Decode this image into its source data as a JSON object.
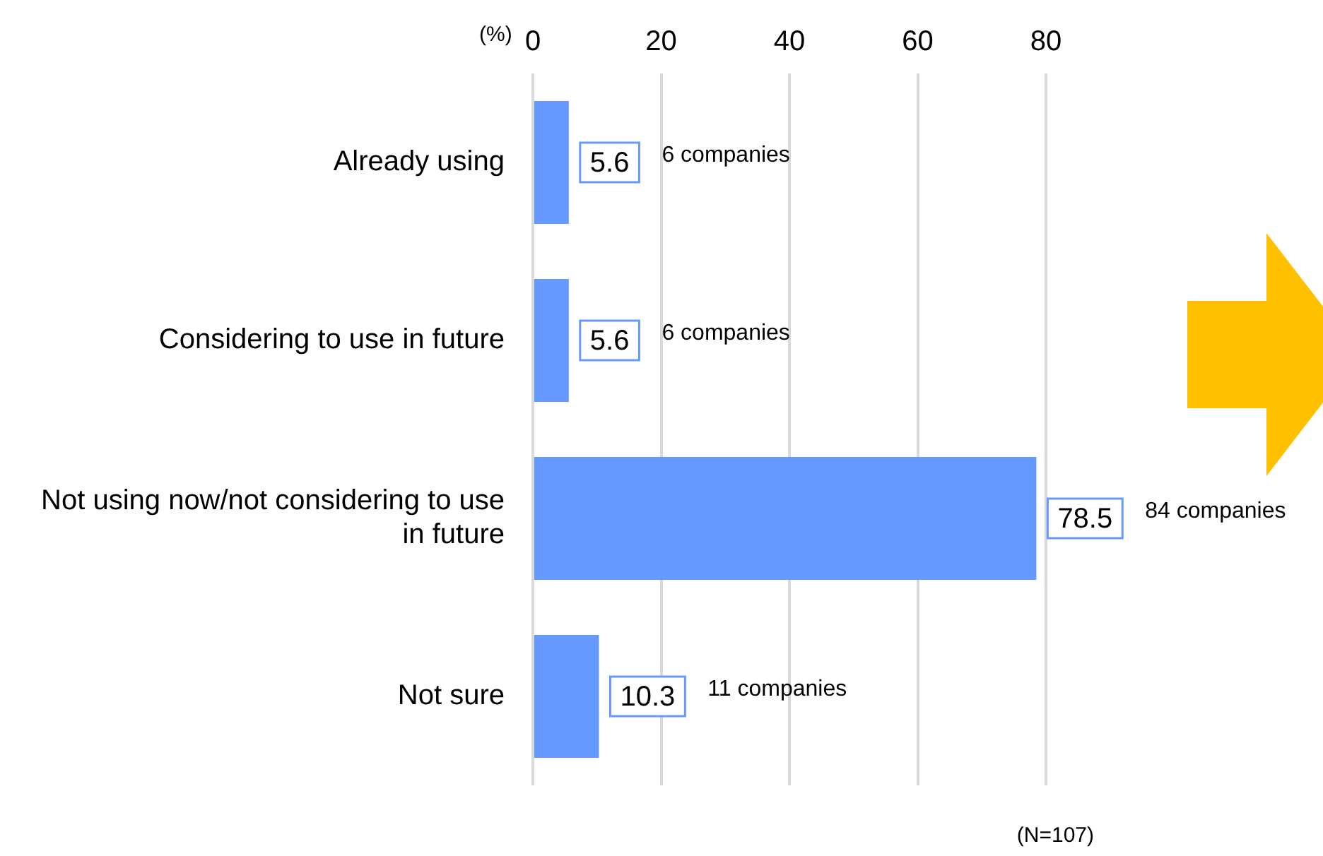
{
  "chart_data": {
    "type": "bar",
    "orientation": "horizontal",
    "xlabel": "(%)",
    "categories": [
      "Already using",
      "Considering to use in future",
      "Not using now/not considering to use in future",
      "Not sure"
    ],
    "values": [
      5.6,
      5.6,
      78.5,
      10.3
    ],
    "color": "#6699ff",
    "xlim": [
      0,
      80
    ],
    "xticks": [
      0,
      20,
      40,
      60,
      80
    ],
    "grid": "x",
    "legend": false,
    "data_labels": true,
    "annotations": [
      "6 companies",
      "6 companies",
      "84 companies",
      "11 companies",
      "(N=107)"
    ]
  }
}
